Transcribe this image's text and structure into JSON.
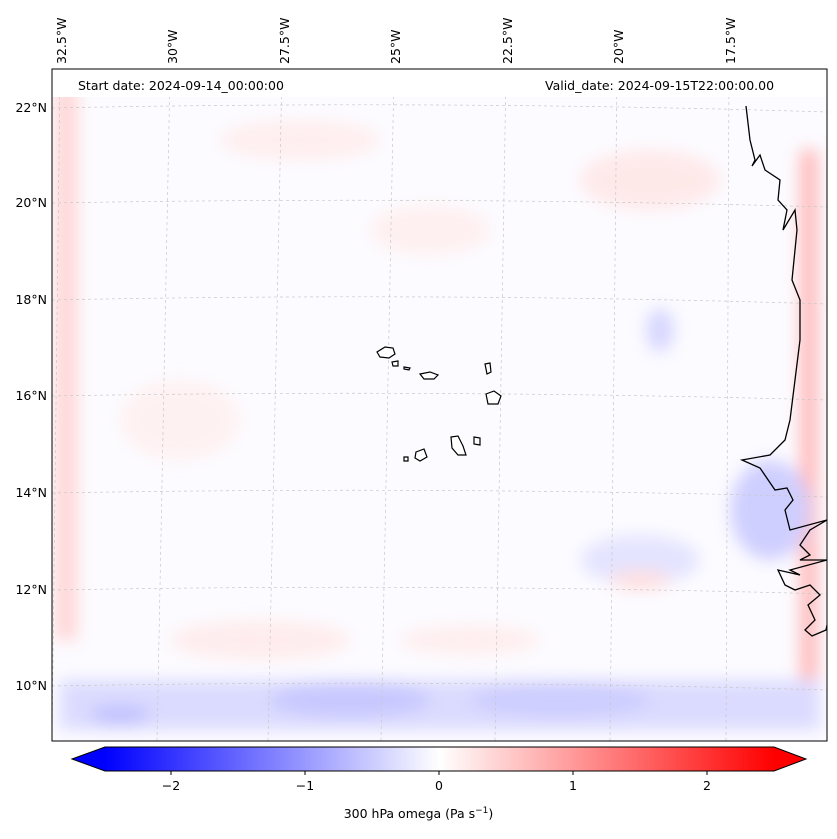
{
  "header": {
    "start_date": "Start date: 2024-09-14_00:00:00",
    "valid_date": "Valid_date: 2024-09-15T22:00:00.00"
  },
  "map": {
    "lon_labels": [
      "32.5°W",
      "30°W",
      "27.5°W",
      "25°W",
      "22.5°W",
      "20°W",
      "17.5°W"
    ],
    "lat_labels": [
      "22°N",
      "20°N",
      "18°N",
      "16°N",
      "14°N",
      "12°N",
      "10°N"
    ],
    "gridlines": "dashed",
    "features": [
      "Cape Verde islands",
      "West African coastline"
    ]
  },
  "colorbar": {
    "ticks": [
      "−2",
      "−1",
      "0",
      "1",
      "2"
    ],
    "label": "300 hPa omega (Pa s",
    "label_sup": "−1",
    "label_close": ")",
    "cmap": "bwr",
    "colors": {
      "min": "#0000ff",
      "mid": "#ffffff",
      "max": "#ff0000"
    },
    "range": [
      -2.5,
      2.5
    ],
    "extend": "both"
  }
}
